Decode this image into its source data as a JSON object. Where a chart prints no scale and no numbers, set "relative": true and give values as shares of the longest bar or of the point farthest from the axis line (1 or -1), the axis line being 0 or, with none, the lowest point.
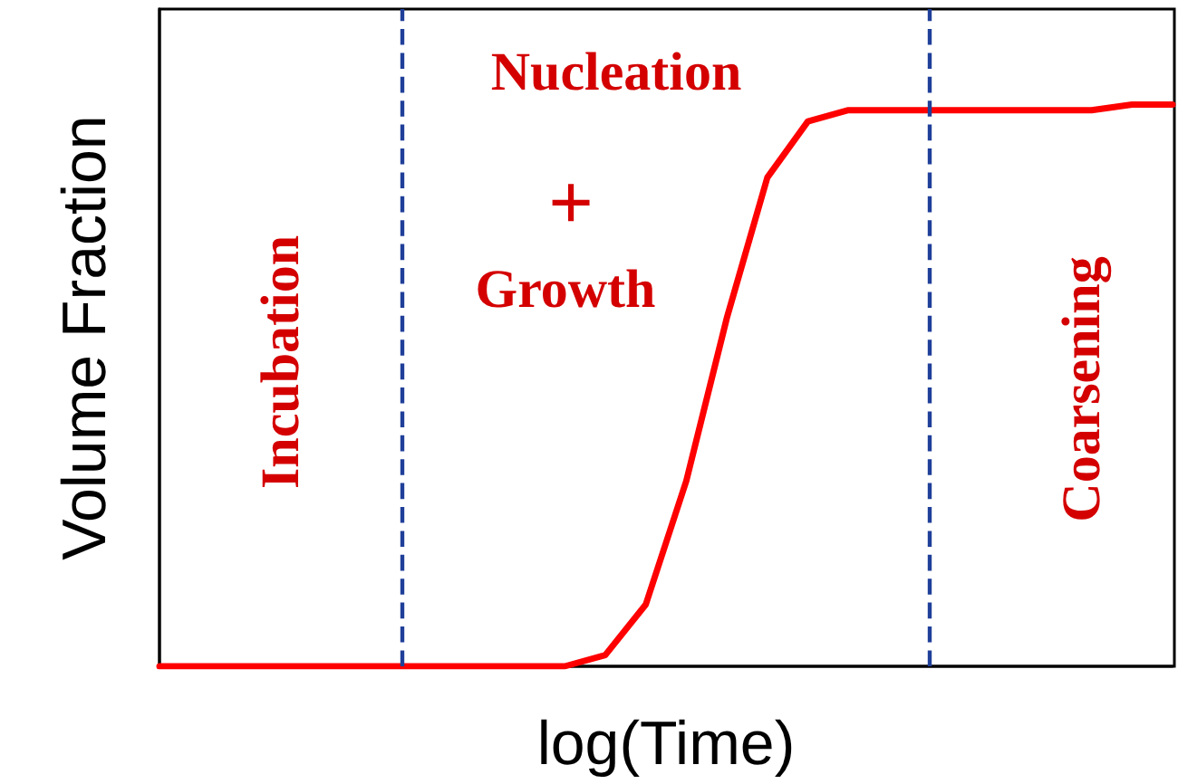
{
  "chart_data": {
    "type": "line",
    "relative": true,
    "xlabel": "log(Time)",
    "ylabel": "Volume Fraction",
    "marker": "none",
    "line_style": "solid",
    "categories": [
      null,
      null,
      null,
      null,
      null,
      null,
      null,
      null,
      null,
      null,
      null,
      null,
      null,
      null,
      null,
      null,
      null,
      null,
      null,
      null,
      null,
      null,
      null,
      null,
      null,
      null
    ],
    "series": [
      {
        "color": "#ff0000",
        "values": [
          0,
          0,
          0,
          0,
          0,
          0,
          0,
          0,
          0,
          0,
          0,
          0.02,
          0.11,
          0.33,
          0.62,
          0.87,
          0.97,
          0.99,
          0.99,
          0.99,
          0.99,
          0.99,
          0.99,
          0.99,
          1,
          1
        ]
      }
    ],
    "annotations": [
      "Incubation",
      "Nucleation",
      "+",
      "Growth",
      "Coarsening"
    ]
  }
}
